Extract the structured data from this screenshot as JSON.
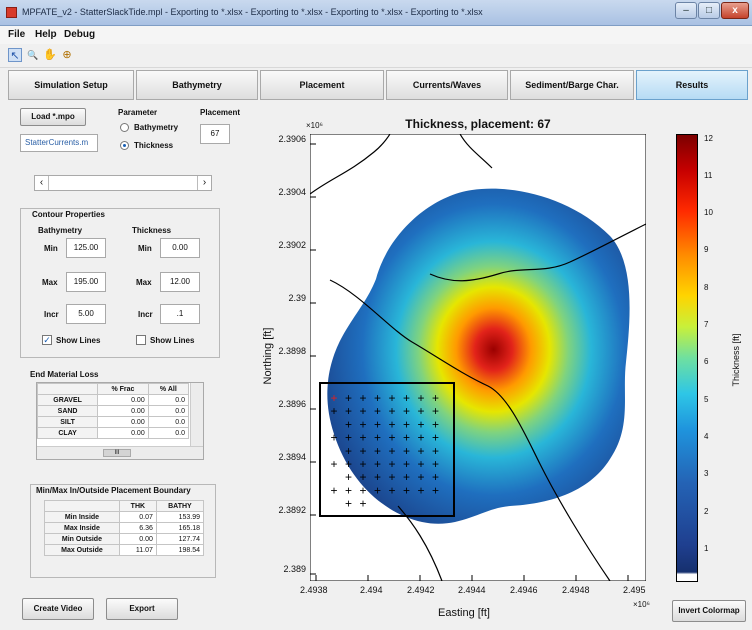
{
  "window": {
    "title": "MPFATE_v2 - StatterSlackTide.mpl - Exporting to *.xlsx - Exporting to *.xlsx - Exporting to *.xlsx - Exporting to *.xlsx",
    "minimize": "–",
    "maximize": "□",
    "close": "x"
  },
  "menu": [
    "File",
    "Help",
    "Debug"
  ],
  "toolbar": {
    "icons": [
      "arrow-icon",
      "zoom-icon",
      "pan-icon",
      "datacursor-icon"
    ],
    "glyphs": [
      "↖",
      "🔍",
      "✋",
      "⊕"
    ]
  },
  "tabs": [
    {
      "label": "Simulation Setup",
      "active": false
    },
    {
      "label": "Bathymetry",
      "active": false
    },
    {
      "label": "Placement",
      "active": false
    },
    {
      "label": "Currents/Waves",
      "active": false
    },
    {
      "label": "Sediment/Barge Char.",
      "active": false
    },
    {
      "label": "Results",
      "active": true
    }
  ],
  "left": {
    "load_button": "Load *.mpo",
    "file_field": "StatterCurrents.m",
    "parameter": {
      "title": "Parameter",
      "options": [
        "Bathymetry",
        "Thickness"
      ],
      "selected": "Thickness"
    },
    "placement": {
      "label": "Placement",
      "value": "67"
    },
    "slider": {
      "left": "‹",
      "right": "›"
    },
    "contour": {
      "title": "Contour Properties",
      "bathymetry": {
        "title": "Bathymetry",
        "min_label": "Min",
        "min": "125.00",
        "max_label": "Max",
        "max": "195.00",
        "incr_label": "Incr",
        "incr": "5.00",
        "show_lines": "Show Lines",
        "checked": true
      },
      "thickness": {
        "title": "Thickness",
        "min_label": "Min",
        "min": "0.00",
        "max_label": "Max",
        "max": "12.00",
        "incr_label": "Incr",
        "incr": ".1",
        "show_lines": "Show Lines",
        "checked": false
      }
    },
    "end_loss": {
      "title": "End Material Loss",
      "columns": [
        "",
        "% Frac",
        "% All"
      ],
      "rows": [
        {
          "name": "GRAVEL",
          "frac": "0.00",
          "all": "0.0"
        },
        {
          "name": "SAND",
          "frac": "0.00",
          "all": "0.0"
        },
        {
          "name": "SILT",
          "frac": "0.00",
          "all": "0.0"
        },
        {
          "name": "CLAY",
          "frac": "0.00",
          "all": "0.0"
        }
      ],
      "scroll_glyph": "III"
    },
    "boundary": {
      "title": "Min/Max In/Outside Placement Boundary",
      "columns": [
        "",
        "THK",
        "BATHY"
      ],
      "rows": [
        {
          "name": "Min Inside",
          "thk": "0.07",
          "bathy": "153.99"
        },
        {
          "name": "Max Inside",
          "thk": "6.36",
          "bathy": "165.18"
        },
        {
          "name": "Min Outside",
          "thk": "0.00",
          "bathy": "127.74"
        },
        {
          "name": "Max Outside",
          "thk": "11.07",
          "bathy": "198.54"
        }
      ]
    },
    "create_video": "Create Video",
    "export": "Export"
  },
  "colors": {
    "accent_tab": "#b6dbf4",
    "marker_first": "#e02020",
    "marker": "#000000"
  },
  "plot": {
    "title": "Thickness, placement: 67",
    "xlabel": "Easting [ft]",
    "ylabel": "Northing [ft]",
    "x_exponent": "×10⁶",
    "y_exponent": "×10⁶",
    "xticks": [
      "2.4938",
      "2.494",
      "2.4942",
      "2.4944",
      "2.4946",
      "2.4948",
      "2.495"
    ],
    "yticks": [
      "2.3906",
      "2.3904",
      "2.3902",
      "2.39",
      "2.3898",
      "2.3896",
      "2.3894",
      "2.3892",
      "2.389"
    ],
    "colorbar": {
      "label": "Thickness [ft]",
      "min": 0,
      "max": 12,
      "ticks": [
        "12",
        "11",
        "10",
        "9",
        "8",
        "7",
        "6",
        "5",
        "4",
        "3",
        "2",
        "1"
      ]
    },
    "invert_button": "Invert Colormap",
    "marker_glyph": "+"
  }
}
